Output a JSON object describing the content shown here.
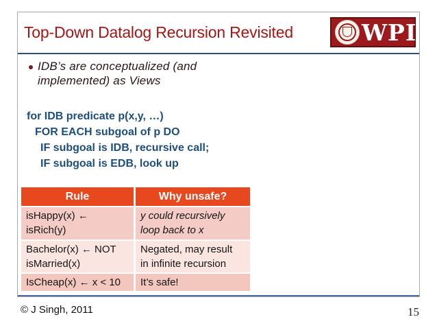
{
  "slide": {
    "title": "Top-Down Datalog Recursion Revisited",
    "logo_text": "WPI",
    "bullet_lines": [
      "IDB’s are conceptualized (and",
      "implemented) as Views"
    ],
    "code_lines": [
      "for IDB predicate p(x,y, …)",
      "FOR EACH subgoal of p DO",
      "IF subgoal is IDB, recursive call;",
      "IF subgoal is EDB, look up"
    ],
    "table": {
      "headers": [
        "Rule",
        "Why unsafe?"
      ],
      "rows": [
        {
          "rule": [
            "isHappy(x) ←",
            "isRich(y)"
          ],
          "why": [
            "y could recursively",
            "loop back to x"
          ]
        },
        {
          "rule": [
            "Bachelor(x) ← NOT",
            "isMarried(x)"
          ],
          "why": [
            "Negated, may result",
            "in infinite recursion"
          ]
        },
        {
          "rule": [
            "IsCheap(x) ← x < 10"
          ],
          "why": [
            "It’s safe!"
          ]
        }
      ]
    }
  },
  "footer": {
    "copyright": "© J Singh, 2011",
    "page_number": "15"
  },
  "colors": {
    "title_red": "#A81616",
    "logo_red": "#9C1A1D",
    "divider_blue": "#2E4E7E",
    "code_navy": "#1E4E7C",
    "bullet_text": "#2B1414",
    "table_header_bg": "#E8481E",
    "table_row_pink": "#F5CBC5",
    "table_row_pink_light": "#FBE5E1",
    "table_row_pink_dark": "#F3C6BE"
  }
}
